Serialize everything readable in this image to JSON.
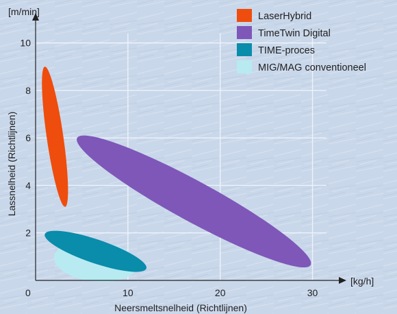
{
  "chart_data": {
    "type": "scatter",
    "title": "",
    "xlabel": "Neersmeltsnelheid (Richtlijnen)",
    "ylabel": "Lassnelheid (Richtlijnen)",
    "x_unit": "[kg/h]",
    "y_unit": "[m/min]",
    "origin_label": "0",
    "xlim": [
      0,
      33
    ],
    "ylim": [
      0,
      11
    ],
    "x_ticks": [
      10,
      20,
      30
    ],
    "y_ticks": [
      2,
      4,
      6,
      8,
      10
    ],
    "grid": true,
    "legend_position": "top-right",
    "series": [
      {
        "name": "LaserHybrid",
        "color": "#ef4d0d",
        "region": {
          "x_start": 1.0,
          "y_start": 9.0,
          "x_end": 3.2,
          "y_end": 3.1,
          "width": 0.35
        }
      },
      {
        "name": "TimeTwin Digital",
        "color": "#7e57b8",
        "region": {
          "x_start": 4.5,
          "y_start": 6.0,
          "x_end": 29.8,
          "y_end": 0.65,
          "width": 0.85
        }
      },
      {
        "name": "TIME-proces",
        "color": "#0a8cab",
        "region": {
          "x_start": 1.0,
          "y_start": 1.95,
          "x_end": 12.0,
          "y_end": 0.5,
          "width": 0.5
        }
      },
      {
        "name": "MIG/MAG conventioneel",
        "color": "#b8eaf2",
        "region": {
          "x_start": 2.0,
          "y_start": 1.0,
          "x_end": 11.0,
          "y_end": 0.6,
          "width": 0.85
        }
      }
    ]
  }
}
